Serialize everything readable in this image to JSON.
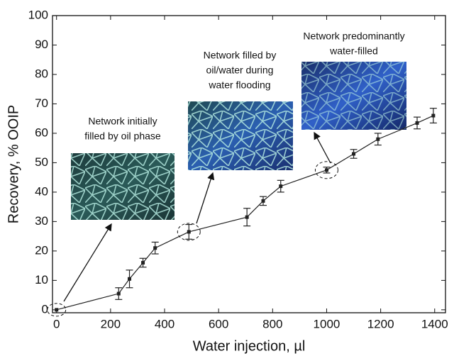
{
  "chart_data": {
    "type": "line",
    "x_label": "Water injection, µl",
    "y_label": "Recovery, % OOIP",
    "x": [
      0,
      230,
      270,
      320,
      365,
      490,
      705,
      765,
      830,
      1000,
      1100,
      1190,
      1335,
      1395
    ],
    "series": [
      {
        "color": "#222222",
        "values": [
          0,
          5.5,
          10.5,
          16,
          21,
          26.5,
          31.5,
          37,
          42,
          47.5,
          53,
          58,
          63.5,
          66
        ],
        "errors": [
          null,
          2,
          3,
          1.5,
          2,
          2.5,
          3,
          1.5,
          2,
          1,
          1.5,
          2,
          2,
          2.5
        ]
      }
    ],
    "xlim": [
      -15,
      1440
    ],
    "ylim": [
      -1,
      100
    ],
    "xticks": [
      0,
      200,
      400,
      600,
      800,
      1000,
      1200,
      1400
    ],
    "yticks": [
      0,
      10,
      20,
      30,
      40,
      50,
      60,
      70,
      80,
      90,
      100
    ],
    "annotations": [
      {
        "lines": [
          "Network initially",
          "filled by oil phase"
        ]
      },
      {
        "lines": [
          "Network filled by",
          "oil/water during",
          "water flooding"
        ]
      },
      {
        "lines": [
          "Network predominantly",
          "water-filled"
        ]
      }
    ]
  }
}
